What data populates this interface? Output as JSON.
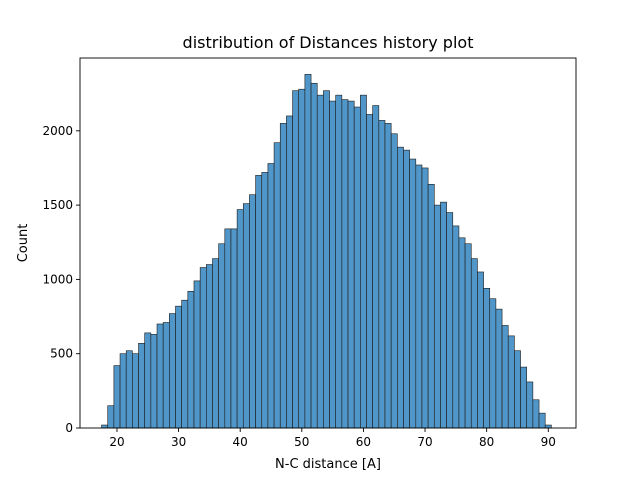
{
  "chart_data": {
    "type": "bar",
    "title": "distribution of Distances history plot",
    "xlabel": "N-C distance [A]",
    "ylabel": "Count",
    "xlim": [
      14.0,
      94.5
    ],
    "ylim": [
      0,
      2490
    ],
    "x_ticks": [
      20,
      30,
      40,
      50,
      60,
      70,
      80,
      90
    ],
    "y_ticks": [
      0,
      500,
      1000,
      1500,
      2000
    ],
    "bar_color": "#5196c8",
    "bin_start": 17.5,
    "bin_width": 1.0,
    "values": [
      20,
      150,
      420,
      500,
      520,
      500,
      570,
      640,
      630,
      700,
      710,
      770,
      820,
      860,
      920,
      990,
      1080,
      1100,
      1140,
      1240,
      1340,
      1340,
      1470,
      1510,
      1570,
      1700,
      1720,
      1780,
      1920,
      2050,
      2100,
      2270,
      2280,
      2380,
      2320,
      2240,
      2270,
      2200,
      2240,
      2210,
      2200,
      2160,
      2240,
      2110,
      2170,
      2070,
      2050,
      1980,
      1890,
      1870,
      1810,
      1770,
      1750,
      1640,
      1500,
      1520,
      1450,
      1360,
      1280,
      1240,
      1140,
      1050,
      940,
      870,
      800,
      690,
      620,
      520,
      410,
      310,
      190,
      100,
      20
    ]
  }
}
